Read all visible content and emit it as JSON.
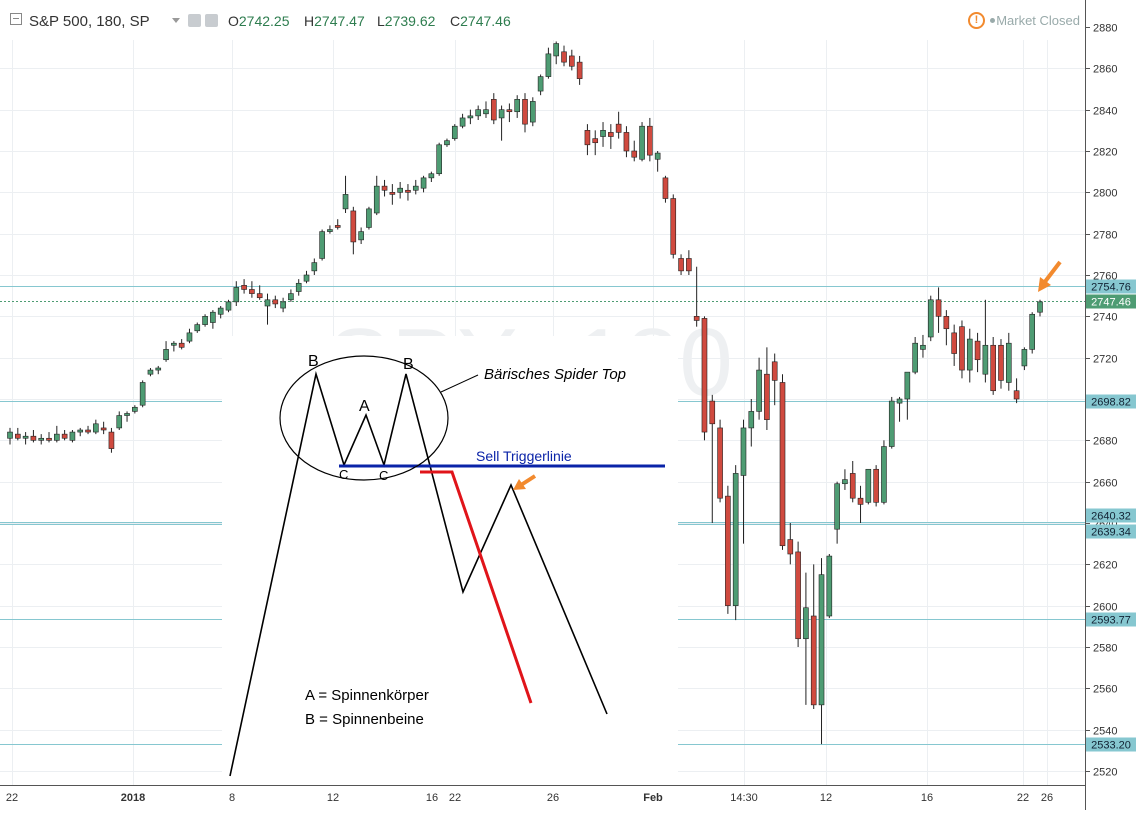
{
  "header": {
    "symbol": "S&P 500, 180, SP",
    "ohlc": [
      {
        "label": "O",
        "value": "2742.25"
      },
      {
        "label": "H",
        "value": "2747.47"
      },
      {
        "label": "L",
        "value": "2739.62"
      },
      {
        "label": "C",
        "value": "2747.46"
      }
    ],
    "status": "Market Closed"
  },
  "colors": {
    "up": "#4e9c73",
    "down": "#d04a3f",
    "level": "#86c7d0",
    "label_bg": "#86c7d0",
    "trigger": "#0a23a8",
    "arrow": "#f28a2e",
    "red_line": "#e0141a"
  },
  "chart_data": {
    "type": "candlestick",
    "y_axis": {
      "range": [
        2513,
        2885
      ],
      "ticks": [
        2520,
        2540,
        2560,
        2580,
        2600,
        2620,
        2640,
        2660,
        2680,
        2700,
        2720,
        2740,
        2760,
        2780,
        2800,
        2820,
        2840,
        2860,
        2880
      ]
    },
    "x_axis": {
      "ticks": [
        "22",
        "2018",
        "8",
        "12",
        "16",
        "22",
        "26",
        "Feb",
        "14:30",
        "12",
        "16",
        "22",
        "26"
      ]
    },
    "price_levels": [
      "2754.76",
      "2747.46",
      "2698.82",
      "2640.32",
      "2639.34",
      "2593.77",
      "2533.20"
    ],
    "watermark": "SPX, 180",
    "candles": [
      {
        "o": 2681,
        "h": 2686,
        "l": 2678,
        "c": 2684
      },
      {
        "o": 2683,
        "h": 2686,
        "l": 2680,
        "c": 2681
      },
      {
        "o": 2681,
        "h": 2684,
        "l": 2678,
        "c": 2682
      },
      {
        "o": 2682,
        "h": 2685,
        "l": 2679,
        "c": 2680
      },
      {
        "o": 2680,
        "h": 2683,
        "l": 2678,
        "c": 2681
      },
      {
        "o": 2681,
        "h": 2684,
        "l": 2679,
        "c": 2680
      },
      {
        "o": 2680,
        "h": 2687,
        "l": 2679,
        "c": 2683
      },
      {
        "o": 2683,
        "h": 2685,
        "l": 2680,
        "c": 2681
      },
      {
        "o": 2680,
        "h": 2685,
        "l": 2679,
        "c": 2684
      },
      {
        "o": 2684,
        "h": 2686,
        "l": 2682,
        "c": 2685
      },
      {
        "o": 2685,
        "h": 2687,
        "l": 2683,
        "c": 2684
      },
      {
        "o": 2684,
        "h": 2690,
        "l": 2683,
        "c": 2688
      },
      {
        "o": 2686,
        "h": 2689,
        "l": 2683,
        "c": 2685
      },
      {
        "o": 2684,
        "h": 2686,
        "l": 2674,
        "c": 2676
      },
      {
        "o": 2686,
        "h": 2694,
        "l": 2685,
        "c": 2692
      },
      {
        "o": 2692,
        "h": 2694,
        "l": 2689,
        "c": 2693
      },
      {
        "o": 2694,
        "h": 2697,
        "l": 2693,
        "c": 2696
      },
      {
        "o": 2697,
        "h": 2709,
        "l": 2696,
        "c": 2708
      },
      {
        "o": 2712,
        "h": 2715,
        "l": 2711,
        "c": 2714
      },
      {
        "o": 2714,
        "h": 2716,
        "l": 2712,
        "c": 2715
      },
      {
        "o": 2719,
        "h": 2728,
        "l": 2718,
        "c": 2724
      },
      {
        "o": 2726,
        "h": 2728,
        "l": 2723,
        "c": 2727
      },
      {
        "o": 2727,
        "h": 2729,
        "l": 2724,
        "c": 2725
      },
      {
        "o": 2728,
        "h": 2734,
        "l": 2727,
        "c": 2732
      },
      {
        "o": 2733,
        "h": 2737,
        "l": 2732,
        "c": 2736
      },
      {
        "o": 2736,
        "h": 2741,
        "l": 2735,
        "c": 2740
      },
      {
        "o": 2737,
        "h": 2743,
        "l": 2734,
        "c": 2742
      },
      {
        "o": 2741,
        "h": 2745,
        "l": 2739,
        "c": 2744
      },
      {
        "o": 2743,
        "h": 2748,
        "l": 2742,
        "c": 2747
      },
      {
        "o": 2747,
        "h": 2757,
        "l": 2745,
        "c": 2754
      },
      {
        "o": 2755,
        "h": 2758,
        "l": 2751,
        "c": 2753
      },
      {
        "o": 2753,
        "h": 2757,
        "l": 2749,
        "c": 2751
      },
      {
        "o": 2751,
        "h": 2755,
        "l": 2748,
        "c": 2749
      },
      {
        "o": 2745,
        "h": 2751,
        "l": 2736,
        "c": 2748
      },
      {
        "o": 2748,
        "h": 2750,
        "l": 2744,
        "c": 2746
      },
      {
        "o": 2744,
        "h": 2749,
        "l": 2742,
        "c": 2747
      },
      {
        "o": 2748,
        "h": 2753,
        "l": 2747,
        "c": 2751
      },
      {
        "o": 2752,
        "h": 2758,
        "l": 2750,
        "c": 2756
      },
      {
        "o": 2757,
        "h": 2762,
        "l": 2756,
        "c": 2760
      },
      {
        "o": 2762,
        "h": 2768,
        "l": 2760,
        "c": 2766
      },
      {
        "o": 2768,
        "h": 2782,
        "l": 2767,
        "c": 2781
      },
      {
        "o": 2781,
        "h": 2784,
        "l": 2780,
        "c": 2782
      },
      {
        "o": 2784,
        "h": 2787,
        "l": 2782,
        "c": 2783
      },
      {
        "o": 2792,
        "h": 2808,
        "l": 2790,
        "c": 2799
      },
      {
        "o": 2791,
        "h": 2793,
        "l": 2770,
        "c": 2776
      },
      {
        "o": 2777,
        "h": 2783,
        "l": 2775,
        "c": 2781
      },
      {
        "o": 2783,
        "h": 2793,
        "l": 2782,
        "c": 2792
      },
      {
        "o": 2790,
        "h": 2808,
        "l": 2789,
        "c": 2803
      },
      {
        "o": 2803,
        "h": 2806,
        "l": 2798,
        "c": 2801
      },
      {
        "o": 2800,
        "h": 2804,
        "l": 2794,
        "c": 2799
      },
      {
        "o": 2800,
        "h": 2805,
        "l": 2797,
        "c": 2802
      },
      {
        "o": 2801,
        "h": 2804,
        "l": 2796,
        "c": 2800
      },
      {
        "o": 2801,
        "h": 2806,
        "l": 2799,
        "c": 2803
      },
      {
        "o": 2802,
        "h": 2808,
        "l": 2800,
        "c": 2807
      },
      {
        "o": 2807,
        "h": 2810,
        "l": 2805,
        "c": 2809
      },
      {
        "o": 2809,
        "h": 2824,
        "l": 2808,
        "c": 2823
      },
      {
        "o": 2823,
        "h": 2826,
        "l": 2822,
        "c": 2825
      },
      {
        "o": 2826,
        "h": 2833,
        "l": 2825,
        "c": 2832
      },
      {
        "o": 2832,
        "h": 2838,
        "l": 2831,
        "c": 2836
      },
      {
        "o": 2836,
        "h": 2840,
        "l": 2833,
        "c": 2837
      },
      {
        "o": 2837,
        "h": 2842,
        "l": 2835,
        "c": 2840
      },
      {
        "o": 2838,
        "h": 2844,
        "l": 2836,
        "c": 2840
      },
      {
        "o": 2845,
        "h": 2848,
        "l": 2833,
        "c": 2835
      },
      {
        "o": 2836,
        "h": 2842,
        "l": 2825,
        "c": 2840
      },
      {
        "o": 2840,
        "h": 2843,
        "l": 2834,
        "c": 2839
      },
      {
        "o": 2839,
        "h": 2847,
        "l": 2836,
        "c": 2845
      },
      {
        "o": 2845,
        "h": 2848,
        "l": 2829,
        "c": 2833
      },
      {
        "o": 2834,
        "h": 2846,
        "l": 2832,
        "c": 2844
      },
      {
        "o": 2849,
        "h": 2857,
        "l": 2847,
        "c": 2856
      },
      {
        "o": 2856,
        "h": 2870,
        "l": 2855,
        "c": 2867
      },
      {
        "o": 2866,
        "h": 2873,
        "l": 2862,
        "c": 2872
      },
      {
        "o": 2868,
        "h": 2871,
        "l": 2861,
        "c": 2863
      },
      {
        "o": 2866,
        "h": 2869,
        "l": 2859,
        "c": 2861
      },
      {
        "o": 2863,
        "h": 2866,
        "l": 2852,
        "c": 2855
      },
      {
        "o": 2830,
        "h": 2833,
        "l": 2818,
        "c": 2823
      },
      {
        "o": 2826,
        "h": 2830,
        "l": 2818,
        "c": 2824
      },
      {
        "o": 2827,
        "h": 2834,
        "l": 2822,
        "c": 2830
      },
      {
        "o": 2829,
        "h": 2833,
        "l": 2821,
        "c": 2827
      },
      {
        "o": 2833,
        "h": 2839,
        "l": 2826,
        "c": 2829
      },
      {
        "o": 2829,
        "h": 2832,
        "l": 2817,
        "c": 2820
      },
      {
        "o": 2820,
        "h": 2825,
        "l": 2815,
        "c": 2817
      },
      {
        "o": 2816,
        "h": 2834,
        "l": 2815,
        "c": 2832
      },
      {
        "o": 2832,
        "h": 2836,
        "l": 2815,
        "c": 2818
      },
      {
        "o": 2816,
        "h": 2820,
        "l": 2810,
        "c": 2819
      },
      {
        "o": 2807,
        "h": 2808,
        "l": 2795,
        "c": 2797
      },
      {
        "o": 2797,
        "h": 2799,
        "l": 2768,
        "c": 2770
      },
      {
        "o": 2768,
        "h": 2770,
        "l": 2760,
        "c": 2762
      },
      {
        "o": 2768,
        "h": 2772,
        "l": 2760,
        "c": 2762
      },
      {
        "o": 2740,
        "h": 2764,
        "l": 2735,
        "c": 2738
      },
      {
        "o": 2739,
        "h": 2740,
        "l": 2680,
        "c": 2684
      },
      {
        "o": 2699,
        "h": 2702,
        "l": 2640,
        "c": 2688
      },
      {
        "o": 2686,
        "h": 2690,
        "l": 2650,
        "c": 2652
      },
      {
        "o": 2653,
        "h": 2658,
        "l": 2596,
        "c": 2600
      },
      {
        "o": 2600,
        "h": 2668,
        "l": 2593,
        "c": 2664
      },
      {
        "o": 2663,
        "h": 2690,
        "l": 2630,
        "c": 2686
      },
      {
        "o": 2686,
        "h": 2700,
        "l": 2677,
        "c": 2694
      },
      {
        "o": 2694,
        "h": 2720,
        "l": 2690,
        "c": 2714
      },
      {
        "o": 2712,
        "h": 2725,
        "l": 2685,
        "c": 2690
      },
      {
        "o": 2718,
        "h": 2722,
        "l": 2697,
        "c": 2709
      },
      {
        "o": 2708,
        "h": 2712,
        "l": 2627,
        "c": 2629
      },
      {
        "o": 2632,
        "h": 2640,
        "l": 2620,
        "c": 2625
      },
      {
        "o": 2626,
        "h": 2631,
        "l": 2580,
        "c": 2584
      },
      {
        "o": 2584,
        "h": 2616,
        "l": 2552,
        "c": 2599
      },
      {
        "o": 2595,
        "h": 2620,
        "l": 2550,
        "c": 2552
      },
      {
        "o": 2552,
        "h": 2623,
        "l": 2533,
        "c": 2615
      },
      {
        "o": 2595,
        "h": 2625,
        "l": 2594,
        "c": 2624
      },
      {
        "o": 2637,
        "h": 2660,
        "l": 2630,
        "c": 2659
      },
      {
        "o": 2659,
        "h": 2666,
        "l": 2656,
        "c": 2661
      },
      {
        "o": 2664,
        "h": 2670,
        "l": 2650,
        "c": 2652
      },
      {
        "o": 2652,
        "h": 2658,
        "l": 2640,
        "c": 2649
      },
      {
        "o": 2650,
        "h": 2666,
        "l": 2649,
        "c": 2666
      },
      {
        "o": 2666,
        "h": 2668,
        "l": 2648,
        "c": 2650
      },
      {
        "o": 2650,
        "h": 2680,
        "l": 2649,
        "c": 2677
      },
      {
        "o": 2677,
        "h": 2701,
        "l": 2676,
        "c": 2699
      },
      {
        "o": 2698,
        "h": 2701,
        "l": 2689,
        "c": 2700
      },
      {
        "o": 2700,
        "h": 2712,
        "l": 2690,
        "c": 2713
      },
      {
        "o": 2713,
        "h": 2730,
        "l": 2712,
        "c": 2727
      },
      {
        "o": 2724,
        "h": 2731,
        "l": 2720,
        "c": 2726
      },
      {
        "o": 2730,
        "h": 2750,
        "l": 2728,
        "c": 2748
      },
      {
        "o": 2748,
        "h": 2754,
        "l": 2732,
        "c": 2740
      },
      {
        "o": 2740,
        "h": 2743,
        "l": 2726,
        "c": 2734
      },
      {
        "o": 2732,
        "h": 2736,
        "l": 2716,
        "c": 2722
      },
      {
        "o": 2735,
        "h": 2738,
        "l": 2710,
        "c": 2714
      },
      {
        "o": 2714,
        "h": 2734,
        "l": 2708,
        "c": 2729
      },
      {
        "o": 2728,
        "h": 2732,
        "l": 2713,
        "c": 2719
      },
      {
        "o": 2712,
        "h": 2748,
        "l": 2708,
        "c": 2726
      },
      {
        "o": 2726,
        "h": 2730,
        "l": 2702,
        "c": 2704
      },
      {
        "o": 2726,
        "h": 2729,
        "l": 2705,
        "c": 2709
      },
      {
        "o": 2708,
        "h": 2732,
        "l": 2704,
        "c": 2727
      },
      {
        "o": 2704,
        "h": 2710,
        "l": 2698,
        "c": 2700
      },
      {
        "o": 2716,
        "h": 2725,
        "l": 2714,
        "c": 2724
      },
      {
        "o": 2724,
        "h": 2742,
        "l": 2722,
        "c": 2741
      },
      {
        "o": 2742,
        "h": 2748,
        "l": 2740,
        "c": 2747
      }
    ]
  },
  "annotation": {
    "label_B1": "B",
    "label_B2": "B",
    "label_A": "A",
    "label_C1": "C",
    "label_C2": "C",
    "spider_title": "Bärisches Spider Top",
    "trigger_label": "Sell Triggerlinie",
    "legend_a": "A = Spinnenkörper",
    "legend_b": "B = Spinnenbeine"
  }
}
